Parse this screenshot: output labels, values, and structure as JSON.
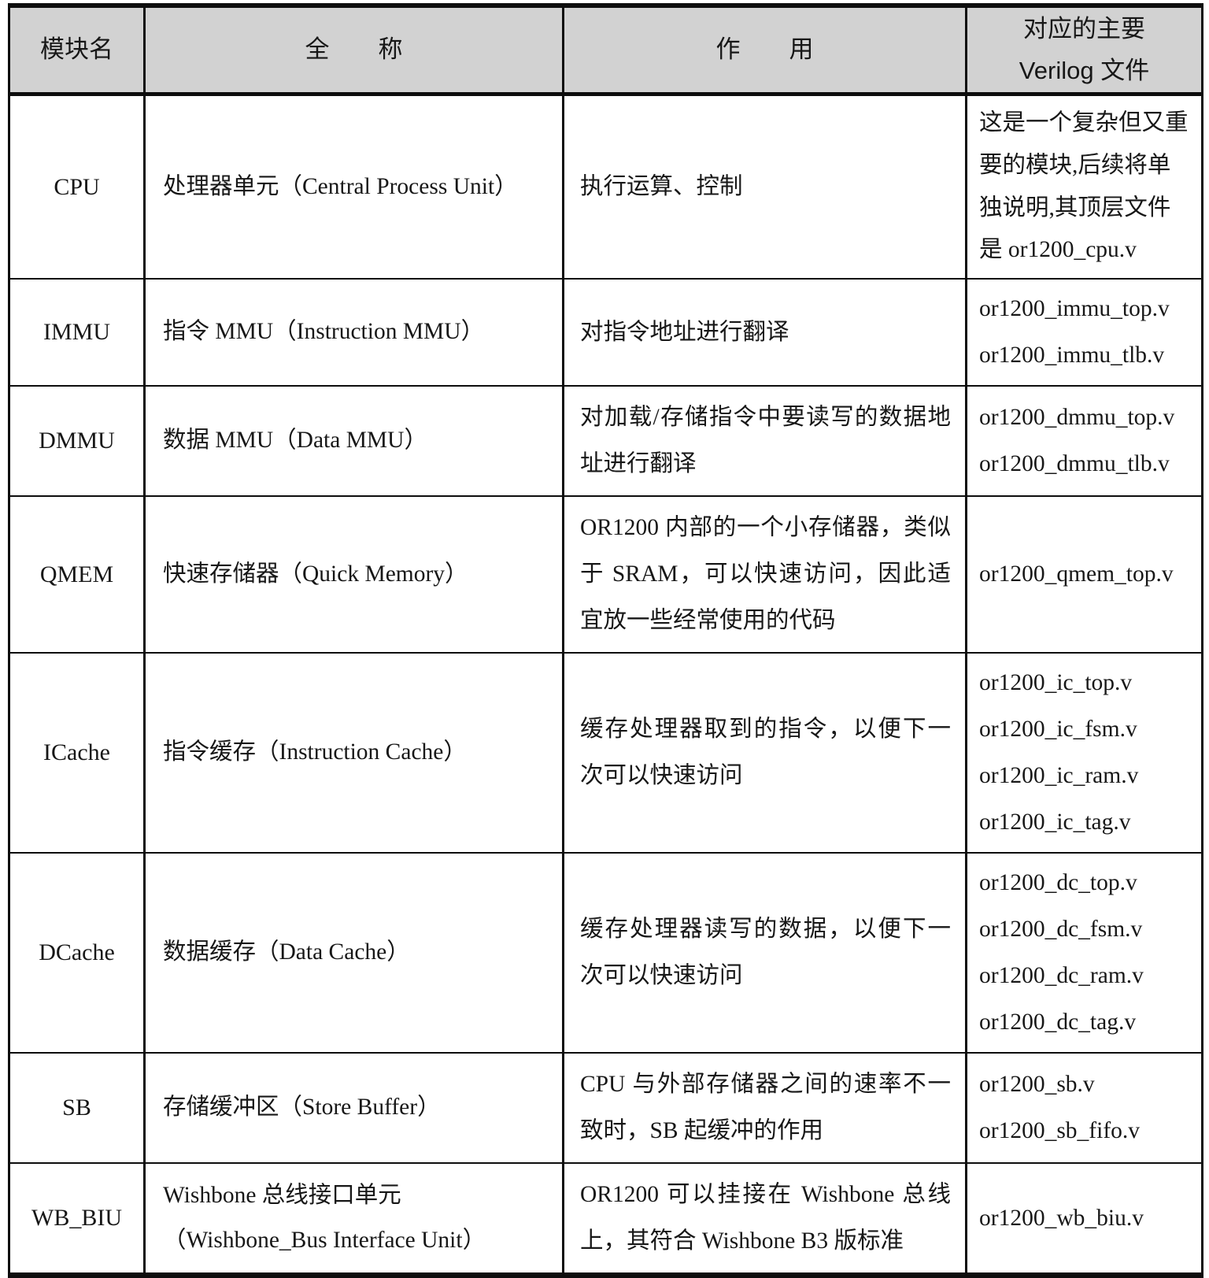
{
  "colors": {
    "header_bg": "#d2d2d2",
    "border": "#0d0d0d",
    "text": "#171717"
  },
  "table": {
    "headers": {
      "module": "模块名",
      "full_name": "全　　称",
      "function": "作　　用",
      "verilog_line1": "对应的主要",
      "verilog_line2": "Verilog 文件"
    },
    "rows": [
      {
        "module": "CPU",
        "full_name": "处理器单元（Central Process Unit）",
        "function": "执行运算、控制",
        "verilog_note": "这是一个复杂但又重要的模块,后续将单独说明,其顶层文件是 or1200_cpu.v"
      },
      {
        "module": "IMMU",
        "full_name": "指令 MMU（Instruction MMU）",
        "function": "对指令地址进行翻译",
        "verilog_files": [
          "or1200_immu_top.v",
          "or1200_immu_tlb.v"
        ]
      },
      {
        "module": "DMMU",
        "full_name": "数据 MMU（Data MMU）",
        "function": "对加载/存储指令中要读写的数据地址进行翻译",
        "verilog_files": [
          "or1200_dmmu_top.v",
          "or1200_dmmu_tlb.v"
        ]
      },
      {
        "module": "QMEM",
        "full_name": "快速存储器（Quick Memory）",
        "function": "OR1200 内部的一个小存储器，类似于 SRAM，可以快速访问，因此适宜放一些经常使用的代码",
        "verilog_files": [
          "or1200_qmem_top.v"
        ]
      },
      {
        "module": "ICache",
        "full_name": "指令缓存（Instruction Cache）",
        "function": "缓存处理器取到的指令，以便下一次可以快速访问",
        "verilog_files": [
          "or1200_ic_top.v",
          "or1200_ic_fsm.v",
          "or1200_ic_ram.v",
          "or1200_ic_tag.v"
        ]
      },
      {
        "module": "DCache",
        "full_name": "数据缓存（Data Cache）",
        "function": "缓存处理器读写的数据，以便下一次可以快速访问",
        "verilog_files": [
          "or1200_dc_top.v",
          "or1200_dc_fsm.v",
          "or1200_dc_ram.v",
          "or1200_dc_tag.v"
        ]
      },
      {
        "module": "SB",
        "full_name": "存储缓冲区（Store Buffer）",
        "function": "CPU 与外部存储器之间的速率不一致时，SB 起缓冲的作用",
        "verilog_files": [
          "or1200_sb.v",
          "or1200_sb_fifo.v"
        ]
      },
      {
        "module": "WB_BIU",
        "full_name": "Wishbone 总线接口单元（Wishbone_Bus Interface Unit）",
        "function": "OR1200 可以挂接在 Wishbone 总线上，其符合 Wishbone B3 版标准",
        "verilog_files": [
          "or1200_wb_biu.v"
        ]
      }
    ]
  }
}
